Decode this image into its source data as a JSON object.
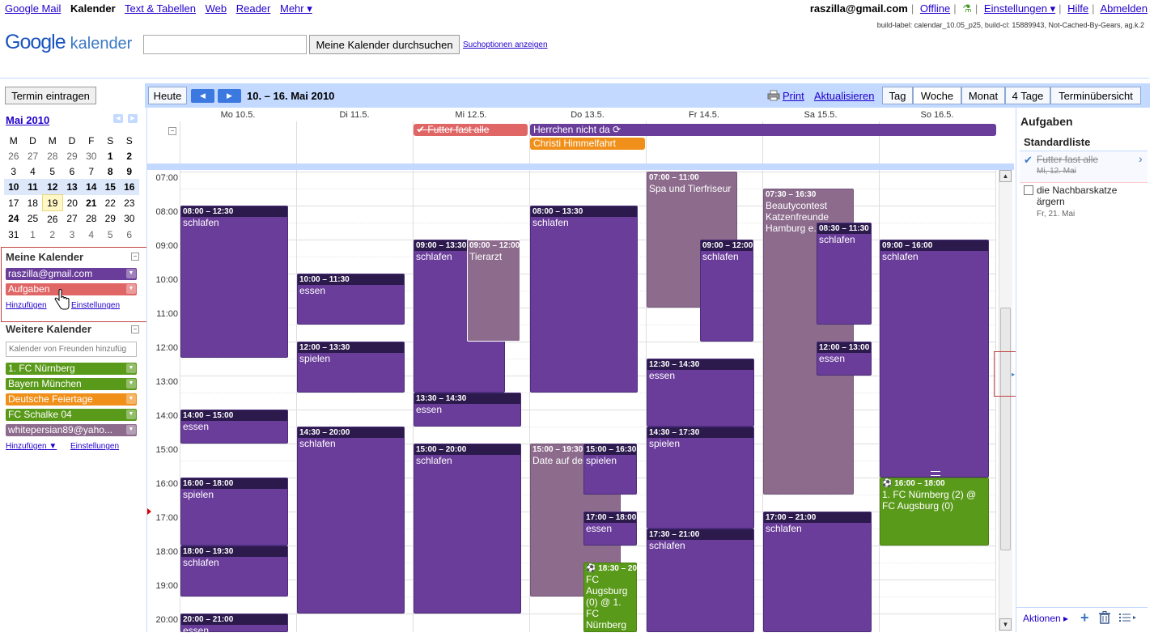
{
  "topbar": {
    "apps": [
      "Google Mail",
      "Kalender",
      "Text & Tabellen",
      "Web",
      "Reader",
      "Mehr ▾"
    ],
    "user_email": "raszilla@gmail.com",
    "offline": "Offline",
    "settings": "Einstellungen ▾",
    "help": "Hilfe",
    "logout": "Abmelden",
    "build_label": "build-label: calendar_10.05_p25, build-cl: 15889943, Not-Cached-By-Gears, ag.k.2"
  },
  "header": {
    "logo_text": "Google",
    "logo_product": "kalender",
    "search_placeholder": "",
    "search_button": "Meine Kalender durchsuchen",
    "search_options": "Suchoptionen anzeigen"
  },
  "sidebar": {
    "create_button": "Termin eintragen",
    "mini_title": "Mai 2010",
    "weekday_headers": [
      "M",
      "D",
      "M",
      "D",
      "F",
      "S",
      "S"
    ],
    "weeks": [
      [
        "26",
        "27",
        "28",
        "29",
        "30",
        "1",
        "2"
      ],
      [
        "3",
        "4",
        "5",
        "6",
        "7",
        "8",
        "9"
      ],
      [
        "10",
        "11",
        "12",
        "13",
        "14",
        "15",
        "16"
      ],
      [
        "17",
        "18",
        "19",
        "20",
        "21",
        "22",
        "23"
      ],
      [
        "24",
        "25",
        "26",
        "27",
        "28",
        "29",
        "30"
      ],
      [
        "31",
        "1",
        "2",
        "3",
        "4",
        "5",
        "6"
      ]
    ],
    "my_calendars_title": "Meine Kalender",
    "my_calendars": [
      {
        "label": "raszilla@gmail.com",
        "color": "#6a3d9a"
      },
      {
        "label": "Aufgaben",
        "color": "#e06666"
      }
    ],
    "my_add": "Hinzufügen",
    "my_settings": "Einstellungen",
    "other_calendars_title": "Weitere Kalender",
    "friends_placeholder": "Kalender von Freunden hinzufüg",
    "other_calendars": [
      {
        "label": "1. FC Nürnberg",
        "color": "#5a9a1a"
      },
      {
        "label": "Bayern München",
        "color": "#5a9a1a"
      },
      {
        "label": "Deutsche Feiertage",
        "color": "#f0901a"
      },
      {
        "label": "FC Schalke 04",
        "color": "#5a9a1a"
      },
      {
        "label": "whitepersian89@yaho...",
        "color": "#8c6b8c"
      }
    ],
    "other_add": "Hinzufügen ▼",
    "other_settings": "Einstellungen"
  },
  "toolbar": {
    "today": "Heute",
    "prev": "◀",
    "next": "▶",
    "date_range": "10. – 16. Mai 2010",
    "print": "Print",
    "refresh": "Aktualisieren",
    "views": [
      "Tag",
      "Woche",
      "Monat",
      "4 Tage",
      "Terminübersicht"
    ],
    "active_view": "Woche"
  },
  "days": [
    "Mo 10.5.",
    "Di 11.5.",
    "Mi 12.5.",
    "Do 13.5.",
    "Fr 14.5.",
    "Sa 15.5.",
    "So 16.5."
  ],
  "hours": [
    "07:00",
    "08:00",
    "09:00",
    "10:00",
    "11:00",
    "12:00",
    "13:00",
    "14:00",
    "15:00",
    "16:00",
    "17:00",
    "18:00",
    "19:00",
    "20:00"
  ],
  "allday": [
    {
      "title": "Futter fast alle",
      "color": "#e06666"
    },
    {
      "title": "Herrchen nicht da",
      "color": "#6a3d9a"
    },
    {
      "title": "Christi Himmelfahrt",
      "color": "#f0901a"
    }
  ],
  "events": [
    {
      "time": "08:00 – 12:30",
      "title": "schlafen"
    },
    {
      "time": "14:00 – 15:00",
      "title": "essen"
    },
    {
      "time": "16:00 – 18:00",
      "title": "spielen"
    },
    {
      "time": "18:00 – 19:30",
      "title": "schlafen"
    },
    {
      "time": "20:00 – 21:00",
      "title": "essen"
    },
    {
      "time": "10:00 – 11:30",
      "title": "essen"
    },
    {
      "time": "12:00 – 13:30",
      "title": "spielen"
    },
    {
      "time": "14:30 – 20:00",
      "title": "schlafen"
    },
    {
      "time": "09:00 – 13:30",
      "title": "schlafen"
    },
    {
      "time": "09:00 – 12:00",
      "title": "Tierarzt"
    },
    {
      "time": "13:30 – 14:30",
      "title": "essen"
    },
    {
      "time": "15:00 – 20:00",
      "title": "schlafen"
    },
    {
      "time": "08:00 – 13:30",
      "title": "schlafen"
    },
    {
      "time": "15:00 – 19:30",
      "title": "Date auf dem Dach"
    },
    {
      "time": "15:00 – 16:30",
      "title": "spielen"
    },
    {
      "time": "17:00 – 18:00",
      "title": "essen"
    },
    {
      "time": "18:30 – 20:30",
      "title": "FC Augsburg (0) @ 1. FC Nürnberg"
    },
    {
      "time": "07:00 – 11:00",
      "title": "Spa und Tierfriseur"
    },
    {
      "time": "09:00 – 12:00",
      "title": "schlafen"
    },
    {
      "time": "12:30 – 14:30",
      "title": "essen"
    },
    {
      "time": "14:30 – 17:30",
      "title": "spielen"
    },
    {
      "time": "17:30 – 21:00",
      "title": "schlafen"
    },
    {
      "time": "07:30 – 16:30",
      "title": "Beautycontest Katzenfreunde Hamburg e.V."
    },
    {
      "time": "08:30 – 11:30",
      "title": "schlafen"
    },
    {
      "time": "12:00 – 13:00",
      "title": "essen"
    },
    {
      "time": "17:00 – 21:00",
      "title": "schlafen"
    },
    {
      "time": "09:00 – 16:00",
      "title": "schlafen"
    },
    {
      "time": "16:00 – 18:00",
      "title": "1. FC Nürnberg (2) @ FC Augsburg (0)"
    }
  ],
  "tasks": {
    "title": "Aufgaben",
    "list_name": "Standardliste",
    "items": [
      {
        "title": "Futter fast alle",
        "due": "Mi, 12. Mai",
        "done": true
      },
      {
        "title": "die Nachbarskatze ärgern",
        "due": "Fr, 21. Mai",
        "done": false
      }
    ],
    "actions": "Aktionen ▸"
  }
}
